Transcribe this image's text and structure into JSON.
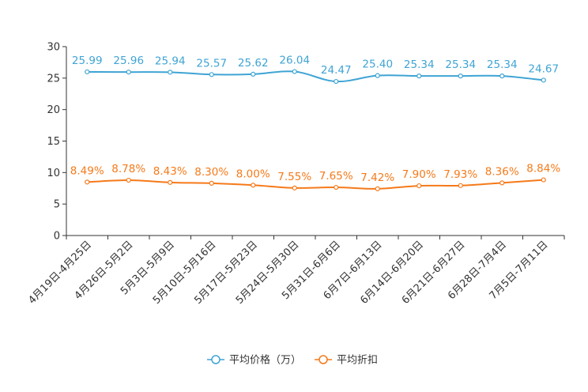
{
  "chart_data": {
    "type": "line",
    "categories": [
      "4月19日-4月25日",
      "4月26日-5月2日",
      "5月3日-5月9日",
      "5月10日-5月16日",
      "5月17日-5月23日",
      "5月24日-5月30日",
      "5月31日-6月6日",
      "6月7日-6月13日",
      "6月14日-6月20日",
      "6月21日-6月27日",
      "6月28日-7月4日",
      "7月5日-7月11日"
    ],
    "ylim": [
      0,
      30
    ],
    "yticks": [
      0,
      5,
      10,
      15,
      20,
      25,
      30
    ],
    "legend_position": "bottom-center",
    "series": [
      {
        "name": "平均价格（万）",
        "color": "#3fa4d4",
        "values": [
          25.99,
          25.96,
          25.94,
          25.57,
          25.62,
          26.04,
          24.47,
          25.4,
          25.34,
          25.34,
          25.34,
          24.67
        ],
        "labels": [
          "25.99",
          "25.96",
          "25.94",
          "25.57",
          "25.62",
          "26.04",
          "24.47",
          "25.40",
          "25.34",
          "25.34",
          "25.34",
          "24.67"
        ]
      },
      {
        "name": "平均折扣",
        "color": "#f57a1a",
        "values": [
          8.49,
          8.78,
          8.43,
          8.3,
          8.0,
          7.55,
          7.65,
          7.42,
          7.9,
          7.93,
          8.36,
          8.84
        ],
        "labels": [
          "8.49%",
          "8.78%",
          "8.43%",
          "8.30%",
          "8.00%",
          "7.55%",
          "7.65%",
          "7.42%",
          "7.90%",
          "7.93%",
          "8.36%",
          "8.84%"
        ]
      }
    ]
  }
}
